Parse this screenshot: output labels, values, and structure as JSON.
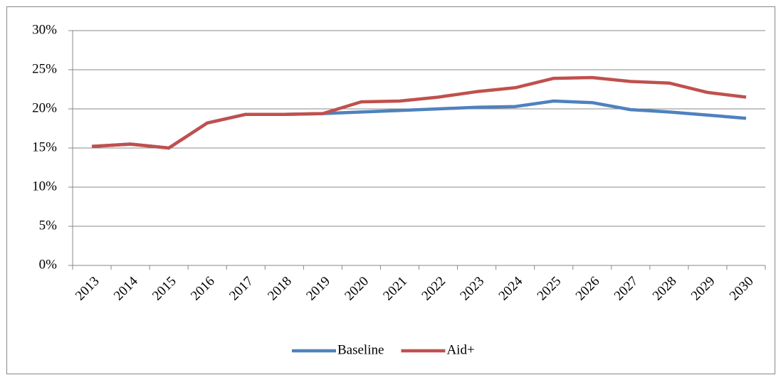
{
  "chart_data": {
    "type": "line",
    "categories": [
      "2013",
      "2014",
      "2015",
      "2016",
      "2017",
      "2018",
      "2019",
      "2020",
      "2021",
      "2022",
      "2023",
      "2024",
      "2025",
      "2026",
      "2027",
      "2028",
      "2029",
      "2030"
    ],
    "series": [
      {
        "name": "Baseline",
        "color": "#4f81bd",
        "values": [
          15.2,
          15.5,
          15.0,
          18.2,
          19.3,
          19.3,
          19.4,
          19.6,
          19.8,
          20.0,
          20.2,
          20.3,
          21.0,
          20.8,
          19.9,
          19.6,
          19.2,
          18.8
        ]
      },
      {
        "name": "Aid+",
        "color": "#c0504d",
        "values": [
          15.2,
          15.5,
          15.0,
          18.2,
          19.3,
          19.3,
          19.4,
          20.9,
          21.0,
          21.5,
          22.2,
          22.7,
          23.9,
          24.0,
          23.5,
          23.3,
          22.1,
          21.5
        ]
      }
    ],
    "ylim": [
      0,
      30
    ],
    "yticks": [
      {
        "value": 0,
        "label": "0%"
      },
      {
        "value": 5,
        "label": "5%"
      },
      {
        "value": 10,
        "label": "10%"
      },
      {
        "value": 15,
        "label": "15%"
      },
      {
        "value": 20,
        "label": "20%"
      },
      {
        "value": 25,
        "label": "25%"
      },
      {
        "value": 30,
        "label": "30%"
      }
    ],
    "grid": true,
    "legend": "bottom"
  }
}
